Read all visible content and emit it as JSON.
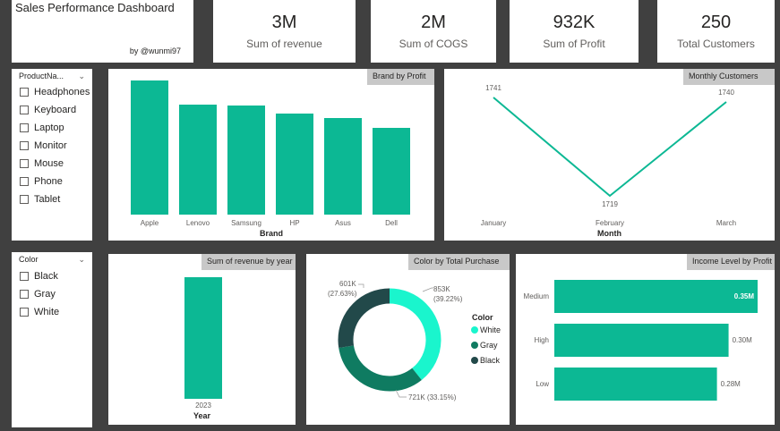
{
  "header": {
    "title": "Sales Performance Dashboard",
    "byline": "by @wunmi97"
  },
  "kpis": [
    {
      "value": "3M",
      "label": "Sum of revenue"
    },
    {
      "value": "2M",
      "label": "Sum of COGS"
    },
    {
      "value": "932K",
      "label": "Sum of Profit"
    },
    {
      "value": "250",
      "label": "Total Customers"
    }
  ],
  "product_slicer": {
    "header": "ProductNa...",
    "items": [
      "Headphones",
      "Keyboard",
      "Laptop",
      "Monitor",
      "Mouse",
      "Phone",
      "Tablet"
    ]
  },
  "color_slicer": {
    "header": "Color",
    "items": [
      "Black",
      "Gray",
      "White"
    ]
  },
  "colors": {
    "teal": "#0cb894",
    "white_series": "#1af5cd",
    "gray_series": "#0f7b61",
    "black_series": "#22494a",
    "title_bg": "#c8c8c8"
  },
  "chart_data": [
    {
      "type": "bar",
      "title": "Brand by Profit",
      "xlabel": "Brand",
      "categories": [
        "Apple",
        "Lenovo",
        "Samsung",
        "HP",
        "Asus",
        "Dell"
      ],
      "values": [
        150,
        123,
        122,
        113,
        108,
        97
      ]
    },
    {
      "type": "line",
      "title": "Monthly Customers",
      "xlabel": "Month",
      "categories": [
        "January",
        "February",
        "March"
      ],
      "values": [
        1741,
        1719,
        1740
      ],
      "labels": [
        "1741",
        "1719",
        "1740"
      ]
    },
    {
      "type": "bar",
      "title": "Sum of revenue by year",
      "xlabel": "Year",
      "categories": [
        "2023"
      ],
      "values": [
        1
      ]
    },
    {
      "type": "pie",
      "title": "Color by Total Purchase",
      "legend_title": "Color",
      "legend": [
        "White",
        "Gray",
        "Black"
      ],
      "series": [
        {
          "name": "White",
          "value": 853,
          "label": "853K",
          "pct": "(39.22%)"
        },
        {
          "name": "Gray",
          "value": 721,
          "label": "721K (33.15%)"
        },
        {
          "name": "Black",
          "value": 601,
          "label": "601K",
          "pct": "(27.63%)"
        }
      ]
    },
    {
      "type": "bar",
      "orientation": "horizontal",
      "title": "Income Level by Profit",
      "categories": [
        "Medium",
        "High",
        "Low"
      ],
      "values": [
        0.35,
        0.3,
        0.28
      ],
      "labels": [
        "0.35M",
        "0.30M",
        "0.28M"
      ]
    }
  ]
}
